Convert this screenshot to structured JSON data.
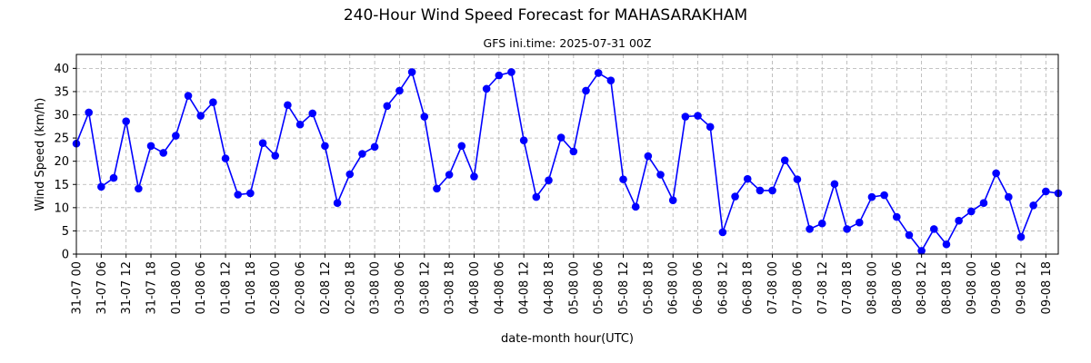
{
  "chart_data": {
    "type": "line",
    "title": "240-Hour Wind Speed Forecast for MAHASARAKHAM",
    "subtitle": "GFS ini.time: 2025-07-31 00Z",
    "xlabel": "date-month hour(UTC)",
    "ylabel": "Wind Speed (km/h)",
    "ylim": [
      0,
      43
    ],
    "yticks": [
      0,
      5,
      10,
      15,
      20,
      25,
      30,
      35,
      40
    ],
    "grid": true,
    "marker": "circle",
    "color": "#0000ff",
    "x_tick_labels": [
      "31-07 00",
      "31-07 06",
      "31-07 12",
      "31-07 18",
      "01-08 00",
      "01-08 06",
      "01-08 12",
      "01-08 18",
      "02-08 00",
      "02-08 06",
      "02-08 12",
      "02-08 18",
      "03-08 00",
      "03-08 06",
      "03-08 12",
      "03-08 18",
      "04-08 00",
      "04-08 06",
      "04-08 12",
      "04-08 18",
      "05-08 00",
      "05-08 06",
      "05-08 12",
      "05-08 18",
      "06-08 00",
      "06-08 06",
      "06-08 12",
      "06-08 18",
      "07-08 00",
      "07-08 06",
      "07-08 12",
      "07-08 18",
      "08-08 00",
      "08-08 06",
      "08-08 12",
      "08-08 18",
      "09-08 00",
      "09-08 06",
      "09-08 12",
      "09-08 18"
    ],
    "x_step_hours": 3,
    "values": [
      23.8,
      30.5,
      14.5,
      16.4,
      28.6,
      14.1,
      23.3,
      21.8,
      25.5,
      34.1,
      29.8,
      32.7,
      20.6,
      12.8,
      13.1,
      23.9,
      21.2,
      32.1,
      27.9,
      30.3,
      23.3,
      11.0,
      17.2,
      21.6,
      23.1,
      31.9,
      35.2,
      39.2,
      29.6,
      14.1,
      17.1,
      23.3,
      16.7,
      35.6,
      38.5,
      39.2,
      24.5,
      12.3,
      15.9,
      25.1,
      22.1,
      35.2,
      39.0,
      37.4,
      16.1,
      10.2,
      21.1,
      17.1,
      11.6,
      29.6,
      29.8,
      27.4,
      4.7,
      12.4,
      16.2,
      13.7,
      13.7,
      20.2,
      16.1,
      5.4,
      6.6,
      15.1,
      5.4,
      6.8,
      12.3,
      12.7,
      8.0,
      4.1,
      0.7,
      5.4,
      2.1,
      7.2,
      9.2,
      11.0,
      17.4,
      12.3,
      3.7,
      10.5,
      13.5,
      13.1
    ]
  }
}
